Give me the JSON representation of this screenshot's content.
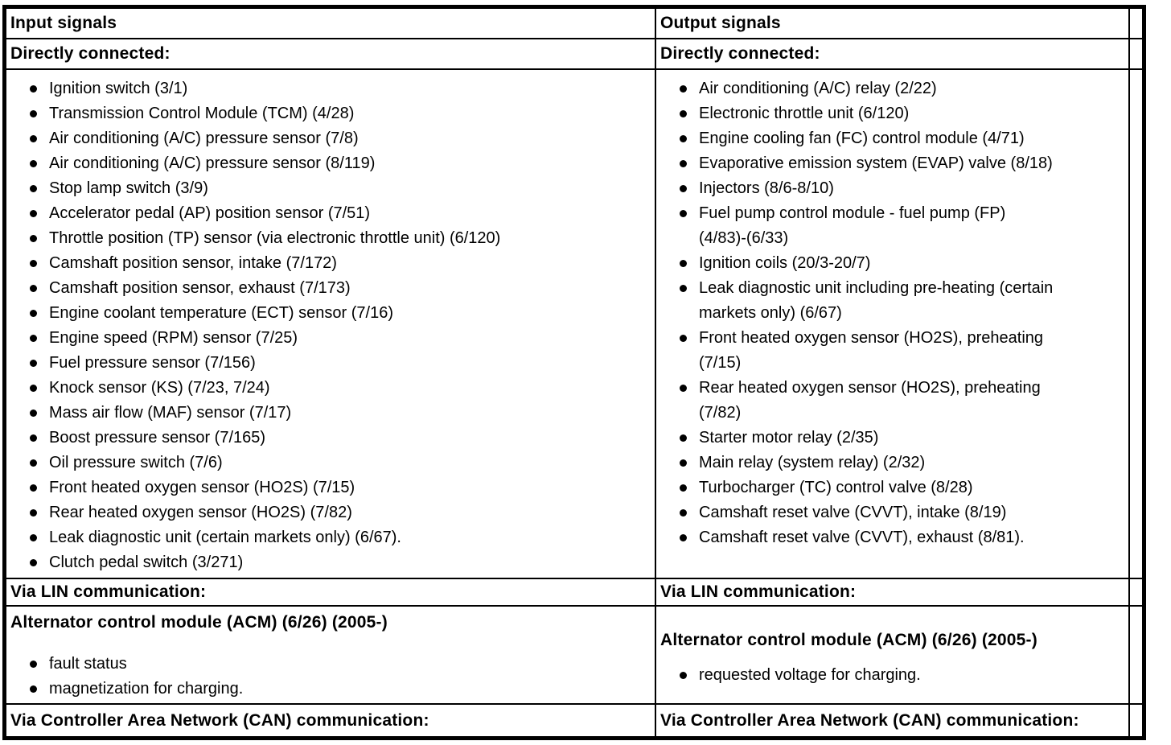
{
  "colors": {
    "border": "#000000",
    "background": "#ffffff",
    "text": "#000000"
  },
  "input": {
    "header": "Input signals",
    "directly_connected_label": "Directly connected:",
    "directly_connected_items": [
      "Ignition switch (3/1)",
      "Transmission Control Module (TCM) (4/28)",
      "Air conditioning (A/C) pressure sensor (7/8)",
      "Air conditioning (A/C) pressure sensor (8/119)",
      "Stop lamp switch (3/9)",
      "Accelerator pedal (AP) position sensor (7/51)",
      "Throttle position (TP) sensor (via electronic throttle unit) (6/120)",
      "Camshaft position sensor, intake (7/172)",
      "Camshaft position sensor, exhaust (7/173)",
      "Engine coolant temperature (ECT) sensor (7/16)",
      "Engine speed (RPM) sensor (7/25)",
      "Fuel pressure sensor (7/156)",
      "Knock sensor (KS) (7/23, 7/24)",
      "Mass air flow (MAF) sensor (7/17)",
      "Boost pressure sensor (7/165)",
      "Oil pressure switch (7/6)",
      "Front heated oxygen sensor (HO2S) (7/15)",
      "Rear heated oxygen sensor (HO2S) (7/82)",
      "Leak diagnostic unit (certain markets only) (6/67).",
      "Clutch pedal switch (3/271)"
    ],
    "via_lin_label": "Via LIN communication:",
    "lin_module_heading": "Alternator control module (ACM) (6/26) (2005-)",
    "lin_module_items": [
      "fault status",
      "magnetization for charging."
    ],
    "via_can_label": "Via Controller Area Network (CAN) communication:"
  },
  "output": {
    "header": "Output signals",
    "directly_connected_label": "Directly connected:",
    "directly_connected_items": [
      "Air conditioning (A/C) relay (2/22)",
      "Electronic throttle unit (6/120)",
      "Engine cooling fan (FC) control module (4/71)",
      "Evaporative emission system (EVAP) valve (8/18)",
      "Injectors (8/6-8/10)",
      "Fuel pump control module - fuel pump (FP)\n(4/83)-(6/33)",
      "Ignition coils (20/3-20/7)",
      "Leak diagnostic unit including pre-heating (certain\nmarkets only) (6/67)",
      "Front heated oxygen sensor (HO2S), preheating\n(7/15)",
      "Rear heated oxygen sensor (HO2S), preheating\n(7/82)",
      "Starter motor relay (2/35)",
      "Main relay (system relay) (2/32)",
      "Turbocharger (TC) control valve (8/28)",
      "Camshaft reset valve (CVVT), intake (8/19)",
      "Camshaft reset valve (CVVT), exhaust (8/81)."
    ],
    "via_lin_label": "Via LIN communication:",
    "lin_module_heading": "Alternator control module (ACM) (6/26) (2005-)",
    "lin_module_items": [
      "requested voltage for charging."
    ],
    "via_can_label": "Via Controller Area Network (CAN) communication:"
  }
}
